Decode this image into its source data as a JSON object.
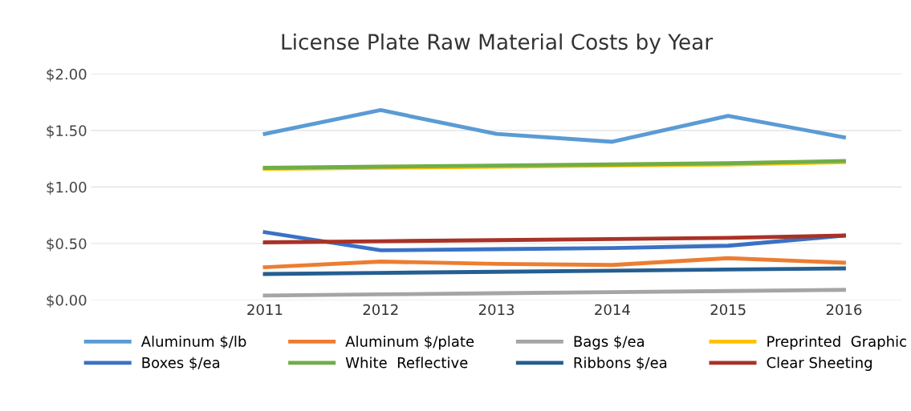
{
  "chart_data": {
    "type": "line",
    "title": "License Plate Raw Material Costs by Year",
    "categories": [
      null,
      "2011",
      "2012",
      "2013",
      "2014",
      "2015",
      "2016"
    ],
    "series": [
      {
        "name": "Aluminum $/lb",
        "color": "#5b9bd5",
        "values": [
          null,
          1.47,
          1.68,
          1.47,
          1.4,
          1.63,
          1.44
        ]
      },
      {
        "name": "Aluminum $/plate",
        "color": "#ed7d31",
        "values": [
          null,
          0.29,
          0.34,
          0.32,
          0.31,
          0.37,
          0.33
        ]
      },
      {
        "name": "Bags $/ea",
        "color": "#a5a5a5",
        "values": [
          null,
          0.04,
          0.05,
          0.06,
          0.07,
          0.08,
          0.09
        ]
      },
      {
        "name": "Preprinted  Graphic",
        "color": "#ffc000",
        "values": [
          null,
          1.16,
          1.17,
          1.18,
          1.19,
          1.2,
          1.22
        ]
      },
      {
        "name": "Boxes $/ea",
        "color": "#3a72c4",
        "values": [
          null,
          0.6,
          0.44,
          0.45,
          0.46,
          0.48,
          0.57
        ]
      },
      {
        "name": "White  Reflective",
        "color": "#70ad47",
        "values": [
          null,
          1.17,
          1.18,
          1.19,
          1.2,
          1.21,
          1.23
        ]
      },
      {
        "name": "Ribbons $/ea",
        "color": "#255e91",
        "values": [
          null,
          0.23,
          0.24,
          0.25,
          0.26,
          0.27,
          0.28
        ]
      },
      {
        "name": "Clear Sheeting",
        "color": "#a93226",
        "values": [
          null,
          0.51,
          0.52,
          0.53,
          0.54,
          0.55,
          0.57
        ]
      }
    ],
    "ylim": [
      0,
      2
    ],
    "yticks": [
      {
        "value": 0,
        "label": "$0.00"
      },
      {
        "value": 0.5,
        "label": "$0.50"
      },
      {
        "value": 1,
        "label": "$1.00"
      },
      {
        "value": 1.5,
        "label": "$1.50"
      },
      {
        "value": 2,
        "label": "$2.00"
      }
    ],
    "grid": "y",
    "legend": "bottom",
    "marker": "none",
    "line_style": "solid"
  }
}
